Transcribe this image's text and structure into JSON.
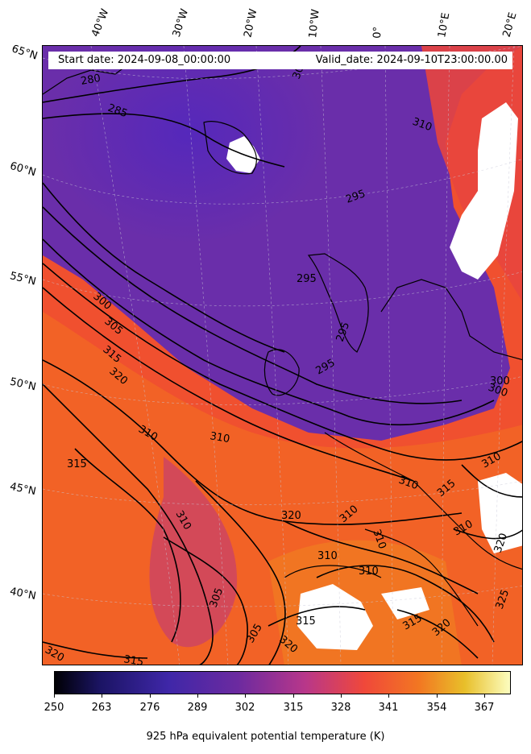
{
  "info": {
    "start_date": "Start date: 2024-09-08_00:00:00",
    "valid_date": "Valid_date: 2024-09-10T23:00:00.00"
  },
  "longitude_labels": [
    "40°W",
    "30°W",
    "20°W",
    "10°W",
    "0°",
    "10°E",
    "20°E"
  ],
  "latitude_labels": [
    "65°N",
    "60°N",
    "55°N",
    "50°N",
    "45°N",
    "40°N"
  ],
  "contour_labels": [
    "285",
    "280",
    "295",
    "300",
    "310",
    "295",
    "300",
    "305",
    "315",
    "320",
    "295",
    "295",
    "300",
    "310",
    "310",
    "315",
    "310",
    "320",
    "310",
    "310",
    "315",
    "310",
    "305",
    "310",
    "305",
    "315",
    "320",
    "310",
    "320",
    "325",
    "315",
    "320",
    "315",
    "320",
    "310",
    "310",
    "300"
  ],
  "colorbar": {
    "ticks": [
      "250",
      "263",
      "276",
      "289",
      "302",
      "315",
      "328",
      "341",
      "354",
      "367"
    ],
    "title": "925 hPa equivalent potential temperature (K)",
    "colormap": [
      "#000004",
      "#1b1464",
      "#3f27a8",
      "#6b2aa0",
      "#b8378a",
      "#f0483a",
      "#f27722",
      "#e8bf2a",
      "#fcfdbf"
    ]
  }
}
